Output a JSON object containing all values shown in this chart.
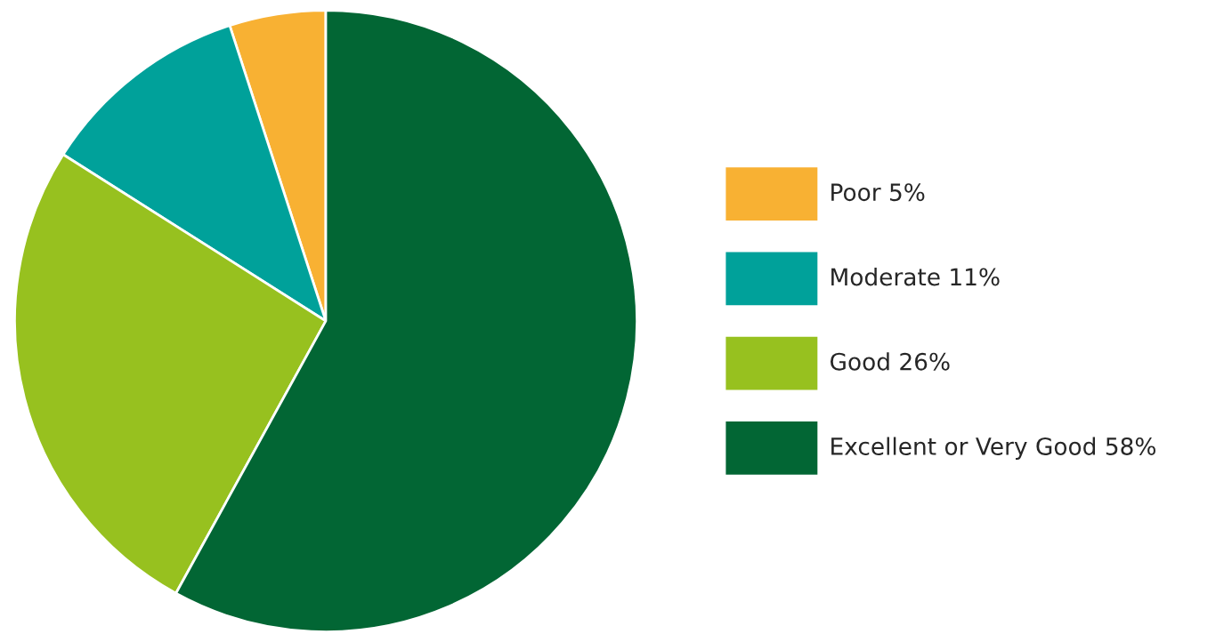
{
  "chart_data": {
    "type": "pie",
    "categories": [
      "Poor",
      "Moderate",
      "Good",
      "Excellent or Very Good"
    ],
    "values": [
      5,
      11,
      26,
      58
    ],
    "value_labels": [
      "5%",
      "11%",
      "26%",
      "58%"
    ],
    "colors": [
      "#f8b133",
      "#00a19a",
      "#97c11f",
      "#026634"
    ],
    "legend": "right"
  }
}
